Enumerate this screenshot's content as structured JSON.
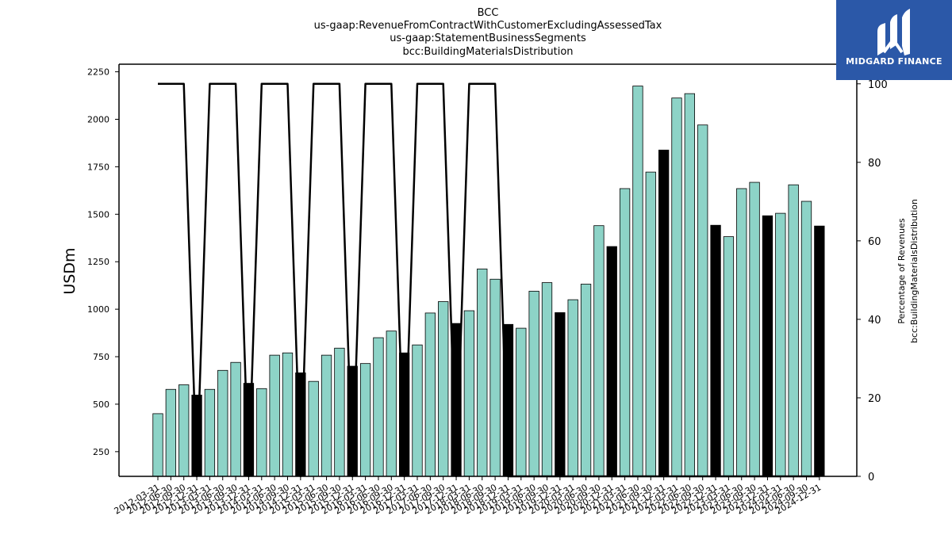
{
  "logo": {
    "text": "MIDGARD FINANCE",
    "background": "#2b58a8"
  },
  "chart_data": {
    "type": "bar",
    "title": [
      "BCC",
      "us-gaap:RevenueFromContractWithCustomerExcludingAssessedTax",
      "us-gaap:StatementBusinessSegments",
      "bcc:BuildingMaterialsDistribution"
    ],
    "ylabel": "USDm",
    "y2label": [
      "Percentage of Revenues",
      "bcc:BuildingMaterialsDistribution"
    ],
    "ylim": [
      120,
      2290
    ],
    "y2lim": [
      0,
      105
    ],
    "yticks": [
      250,
      500,
      750,
      1000,
      1250,
      1500,
      1750,
      2000,
      2250
    ],
    "y2ticks": [
      0,
      20,
      40,
      60,
      80,
      100
    ],
    "colors": {
      "quarter_bar": "#8dd3c7",
      "annual_bar": "#000000",
      "line": "#000000"
    },
    "categories": [
      "2012-03-31",
      "2012-06-30",
      "2012-09-30",
      "2012-12-31",
      "2013-03-31",
      "2013-06-30",
      "2013-09-30",
      "2013-12-31",
      "2014-03-31",
      "2014-06-30",
      "2014-09-30",
      "2014-12-31",
      "2015-03-31",
      "2015-06-30",
      "2015-09-30",
      "2015-12-31",
      "2016-03-31",
      "2016-06-30",
      "2016-09-30",
      "2016-12-31",
      "2017-03-31",
      "2017-06-30",
      "2017-09-30",
      "2017-12-31",
      "2018-03-31",
      "2018-06-30",
      "2018-09-30",
      "2018-12-31",
      "2019-03-31",
      "2019-06-30",
      "2019-09-30",
      "2019-12-31",
      "2020-03-31",
      "2020-06-30",
      "2020-09-30",
      "2020-12-31",
      "2021-03-31",
      "2021-06-30",
      "2021-09-30",
      "2021-12-31",
      "2022-03-31",
      "2022-06-30",
      "2022-09-30",
      "2022-12-31",
      "2023-03-31",
      "2023-06-30",
      "2023-09-30",
      "2023-12-31",
      "2024-03-31",
      "2024-06-30",
      "2024-09-30",
      "2024-12-31"
    ],
    "series": [
      {
        "values": [
          450,
          578,
          602,
          548,
          578,
          678,
          720,
          610,
          582,
          758,
          770,
          665,
          620,
          758,
          795,
          700,
          714,
          850,
          885,
          770,
          812,
          980,
          1040,
          925,
          992,
          1212,
          1158,
          920,
          900,
          1095,
          1140,
          982,
          1050,
          1132,
          1440,
          1330,
          1635,
          2175,
          1722,
          1838,
          2112,
          2135,
          1970,
          1442,
          1382,
          1635,
          1668,
          1492,
          1505,
          1655,
          1568,
          1438
        ]
      },
      {
        "values": [
          100,
          100,
          100,
          null,
          100,
          100,
          100,
          null,
          100,
          100,
          100,
          null,
          100,
          100,
          100,
          null,
          100,
          100,
          100,
          null,
          100,
          100,
          100,
          null,
          100,
          100,
          100,
          null,
          0,
          0,
          0,
          null,
          0,
          0,
          0,
          null,
          0,
          0,
          0,
          null,
          0,
          0,
          0,
          null,
          0,
          0,
          0,
          null,
          0,
          0,
          0,
          null
        ]
      }
    ]
  }
}
